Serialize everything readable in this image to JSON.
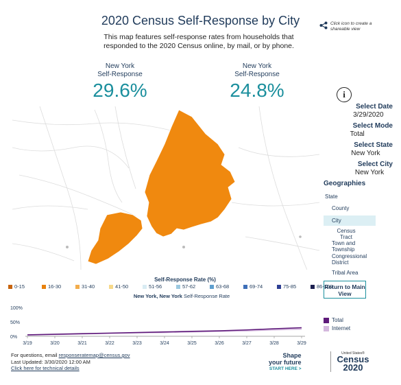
{
  "title": "2020 Census Self-Response by City",
  "description": "This map features self-response rates from households that responded to the 2020 Census online, by mail, or by phone.",
  "share": {
    "text": "Click icon to create a shareable view",
    "icon": "share-icon"
  },
  "kpis": [
    {
      "label_line1": "New York",
      "label_line2": "Self-Response",
      "value": "29.6%"
    },
    {
      "label_line1": "New York",
      "label_line2": "Self-Response",
      "value": "24.8%"
    }
  ],
  "sidebar": {
    "info_icon": "i",
    "selects": [
      {
        "heading": "Select Date",
        "value": "3/29/2020"
      },
      {
        "heading": "Select Mode",
        "value": "Total"
      },
      {
        "heading": "Select State",
        "value": "New York"
      },
      {
        "heading": "Select City",
        "value": "New York"
      }
    ],
    "geographies_heading": "Geographies",
    "geographies": [
      "State",
      "County",
      "City",
      "Census Tract",
      "Town and Township",
      "Congressional District",
      "Tribal Area"
    ],
    "active_geography": "City",
    "return_button": "Return to Main View"
  },
  "legend": {
    "title": "Self-Response Rate (%)",
    "items": [
      {
        "label": "0-15",
        "color": "#c8640e"
      },
      {
        "label": "16-30",
        "color": "#e8820e"
      },
      {
        "label": "31-40",
        "color": "#f3ad4c"
      },
      {
        "label": "41-50",
        "color": "#f7d98a"
      },
      {
        "label": "51-56",
        "color": "#d9ecf3"
      },
      {
        "label": "57-62",
        "color": "#9cc9e0"
      },
      {
        "label": "63-68",
        "color": "#5e9fcf"
      },
      {
        "label": "69-74",
        "color": "#3e6fb8"
      },
      {
        "label": "75-85",
        "color": "#2e3f93"
      },
      {
        "label": "86-100",
        "color": "#1c2050"
      }
    ]
  },
  "map": {
    "fill_color": "#f0890f"
  },
  "chart_title_part1": "New York, New York",
  "chart_title_part2": " Self-Response Rate",
  "chart_data": {
    "type": "line",
    "categories": [
      "3/19",
      "3/20",
      "3/21",
      "3/22",
      "3/23",
      "3/24",
      "3/25",
      "3/26",
      "3/27",
      "3/28",
      "3/29"
    ],
    "yticks": [
      "100%",
      "50%",
      "0%"
    ],
    "ylim": [
      0,
      100
    ],
    "series": [
      {
        "name": "Total",
        "color": "#5e1a7a",
        "values": [
          5,
          7,
          9,
          11,
          13,
          15,
          17,
          19,
          22,
          26,
          29.6
        ]
      },
      {
        "name": "Internet",
        "color": "#d4b8de",
        "values": [
          4,
          6,
          8,
          10,
          12,
          13,
          15,
          17,
          19,
          22,
          24.8
        ]
      }
    ]
  },
  "footer": {
    "line1_prefix": "For questions, email ",
    "email": "responseratemap@census.gov",
    "line2": "Last Updated: 3/30/2020 12:00 AM",
    "link": "Click here for technical details"
  },
  "shape": {
    "line1": "Shape",
    "line2": "your future",
    "line3": "START HERE >"
  },
  "census_logo": {
    "us": "United States®",
    "word": "Census",
    "year": "2020"
  }
}
